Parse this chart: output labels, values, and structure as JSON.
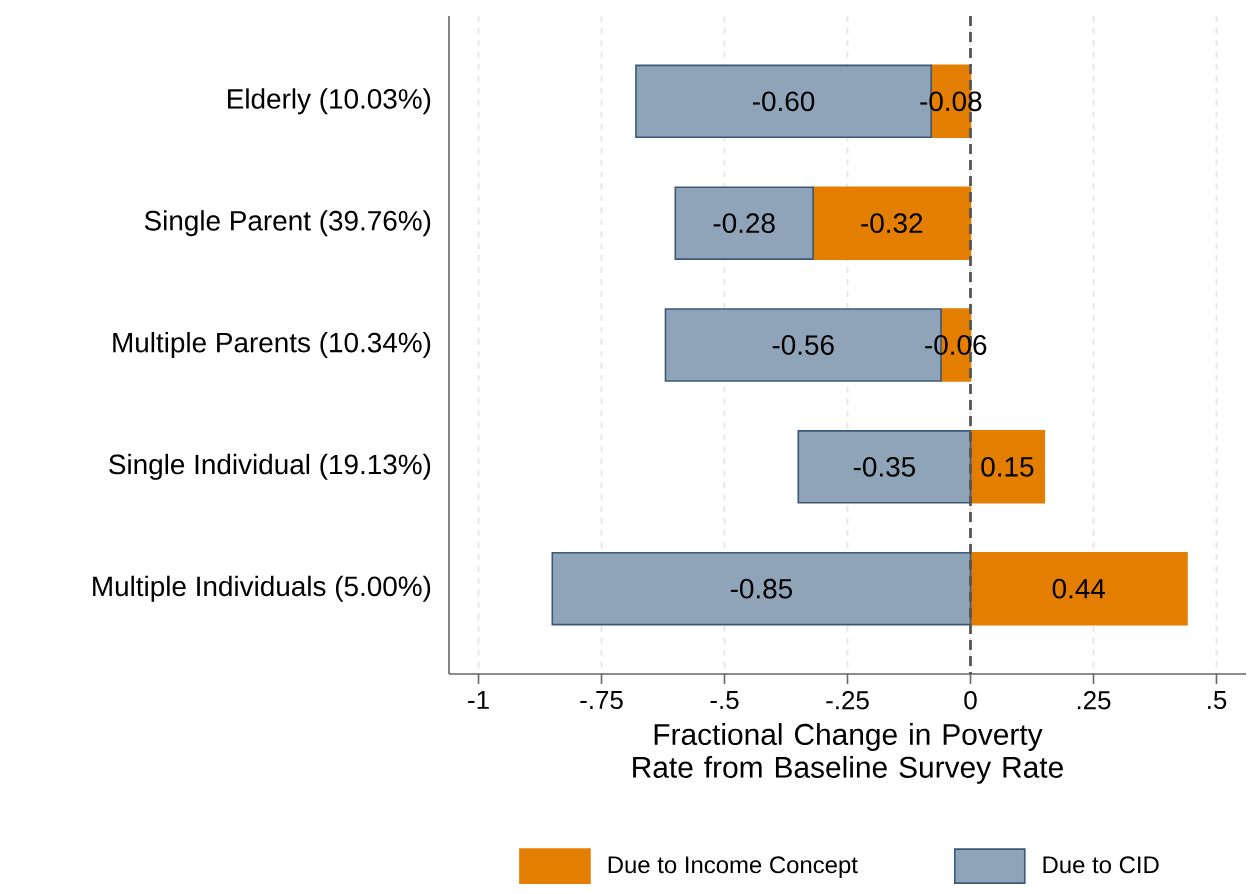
{
  "chart_data": {
    "type": "bar",
    "orientation": "horizontal",
    "categories": [
      "Elderly (10.03%)",
      "Single Parent (39.76%)",
      "Multiple Parents (10.34%)",
      "Single Individual (19.13%)",
      "Multiple Individuals (5.00%)"
    ],
    "series": [
      {
        "name": "Due to Income Concept",
        "color": "#e47e00",
        "values": [
          -0.08,
          -0.32,
          -0.06,
          0.15,
          0.44
        ],
        "base": [
          0,
          0,
          0,
          0,
          0
        ],
        "value_labels": [
          "-0.08",
          "-0.32",
          "-0.06",
          "0.15",
          "0.44"
        ]
      },
      {
        "name": "Due to CID",
        "color": "#8fa4b8",
        "values": [
          -0.6,
          -0.28,
          -0.56,
          -0.35,
          -0.85
        ],
        "base": [
          -0.08,
          -0.32,
          -0.06,
          0,
          0
        ],
        "value_labels": [
          "-0.60",
          "-0.28",
          "-0.56",
          "-0.35",
          "-0.85"
        ]
      }
    ],
    "xlabel": "Fractional Change in Poverty Rate from Baseline Survey Rate",
    "xlim": [
      -1.06,
      0.56
    ],
    "xticks": [
      {
        "value": -1,
        "label": "-1"
      },
      {
        "value": -0.75,
        "label": "-.75"
      },
      {
        "value": -0.5,
        "label": "-.5"
      },
      {
        "value": -0.25,
        "label": "-.25"
      },
      0,
      {
        "value": 0.25,
        "label": ".25"
      },
      {
        "value": 0.5,
        "label": ".5"
      }
    ],
    "grid": "x",
    "legend": "bottom",
    "ref_lines": [
      {
        "axis": "x",
        "value": 0,
        "line_style": "dashed",
        "color": "#555555"
      }
    ]
  }
}
